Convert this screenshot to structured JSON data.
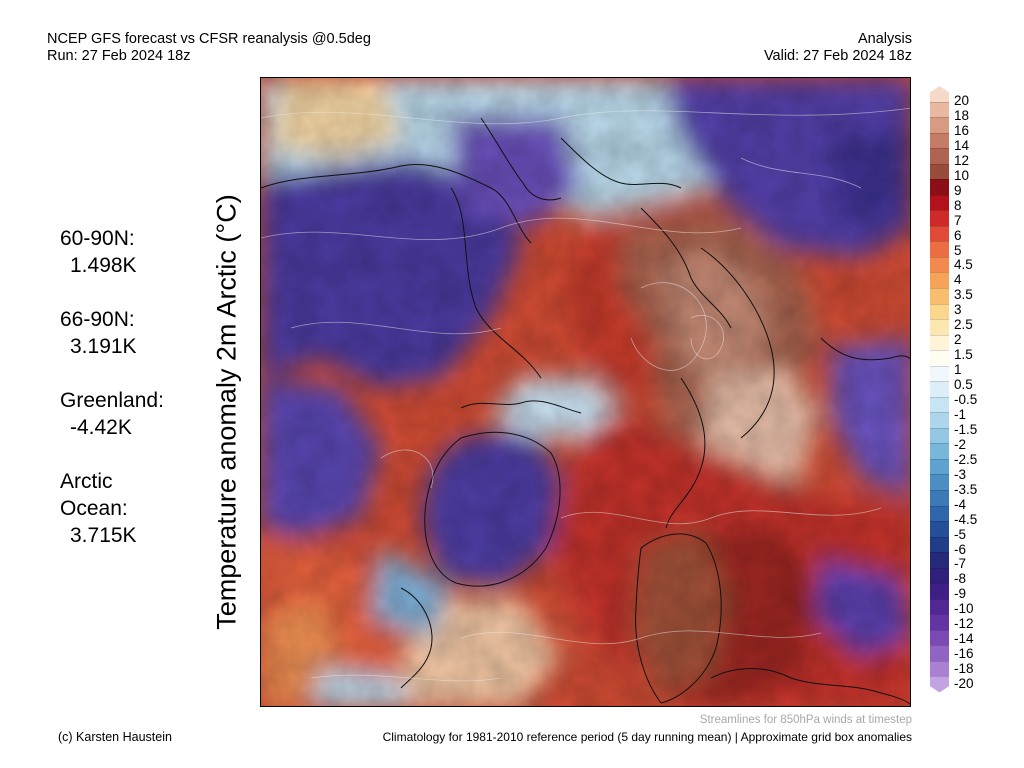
{
  "header": {
    "title_line1": "NCEP GFS forecast vs CFSR reanalysis @0.5deg",
    "title_line2": "Run: 27 Feb 2024 18z",
    "right_line1": "Analysis",
    "right_line2": "Valid: 27 Feb 2024 18z"
  },
  "ylabel": "Temperature anomaly 2m Arctic (°C)",
  "stats": [
    {
      "label": "60-90N:",
      "value": "1.498K"
    },
    {
      "label": "66-90N:",
      "value": "3.191K"
    },
    {
      "label": "Greenland:",
      "value": "-4.42K"
    },
    {
      "label": "Arctic",
      "label2": "Ocean:",
      "value": "3.715K"
    }
  ],
  "colorbar": {
    "labels": [
      "20",
      "18",
      "16",
      "14",
      "12",
      "10",
      "9",
      "8",
      "7",
      "6",
      "5",
      "4.5",
      "4",
      "3.5",
      "3",
      "2.5",
      "2",
      "1.5",
      "1",
      "0.5",
      "-0.5",
      "-1",
      "-1.5",
      "-2",
      "-2.5",
      "-3",
      "-3.5",
      "-4",
      "-4.5",
      "-5",
      "-6",
      "-7",
      "-8",
      "-9",
      "-10",
      "-12",
      "-14",
      "-16",
      "-18",
      "-20"
    ],
    "colors": [
      "#f6d9c9",
      "#e8b8a1",
      "#d89a82",
      "#c57c66",
      "#ae6450",
      "#9a4c3c",
      "#8c0f17",
      "#b3121c",
      "#cf2a2a",
      "#e04a36",
      "#ec6d44",
      "#f3894e",
      "#f6a35a",
      "#f9bd6e",
      "#fbd68c",
      "#fde7b0",
      "#fff3d8",
      "#fffdf2",
      "#f1f8fc",
      "#ddeef8",
      "#c7e4f2",
      "#add6ec",
      "#93c7e3",
      "#78b6da",
      "#5ea3cf",
      "#4a8ec3",
      "#3b79b7",
      "#2f65aa",
      "#264f9a",
      "#213c88",
      "#252a78",
      "#30207a",
      "#3e1f86",
      "#522994",
      "#6434a3",
      "#7a49b3",
      "#9163c3",
      "#a980d2",
      "#c3a3e2"
    ]
  },
  "footer": {
    "credit": "(c) Karsten Haustein",
    "streamlines": "Streamlines for 850hPa winds at timestep",
    "climatology": "Climatology for 1981-2010 reference period (5 day running mean) | Approximate grid box anomalies"
  }
}
